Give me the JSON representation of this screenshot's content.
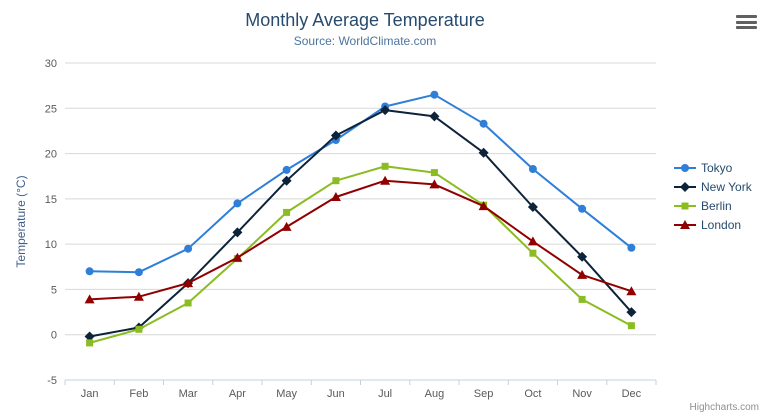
{
  "credits": "Highcharts.com",
  "icons": {
    "export_menu": "hamburger-icon"
  },
  "colors": {
    "title": "#274b6d",
    "subtitle": "#4d759e",
    "gridline": "#d8d8d8",
    "axis_line": "#c0d0e0",
    "tick_label": "#5a5a5a",
    "legend_text": "#274b6d"
  },
  "chart_data": {
    "type": "line",
    "title": "Monthly Average Temperature",
    "subtitle": "Source: WorldClimate.com",
    "xlabel": "",
    "ylabel": "Temperature (°C)",
    "ylim": [
      -5,
      30
    ],
    "ytick_step": 5,
    "grid": true,
    "legend_position": "right",
    "categories": [
      "Jan",
      "Feb",
      "Mar",
      "Apr",
      "May",
      "Jun",
      "Jul",
      "Aug",
      "Sep",
      "Oct",
      "Nov",
      "Dec"
    ],
    "series": [
      {
        "name": "Tokyo",
        "color": "#2f7ed8",
        "marker": "circle",
        "values": [
          7.0,
          6.9,
          9.5,
          14.5,
          18.2,
          21.5,
          25.2,
          26.5,
          23.3,
          18.3,
          13.9,
          9.6
        ]
      },
      {
        "name": "New York",
        "color": "#0d233a",
        "marker": "diamond",
        "values": [
          -0.2,
          0.8,
          5.7,
          11.3,
          17.0,
          22.0,
          24.8,
          24.1,
          20.1,
          14.1,
          8.6,
          2.5
        ]
      },
      {
        "name": "Berlin",
        "color": "#8bbc21",
        "marker": "square",
        "values": [
          -0.9,
          0.6,
          3.5,
          8.4,
          13.5,
          17.0,
          18.6,
          17.9,
          14.3,
          9.0,
          3.9,
          1.0
        ]
      },
      {
        "name": "London",
        "color": "#910000",
        "marker": "triangle",
        "values": [
          3.9,
          4.2,
          5.7,
          8.5,
          11.9,
          15.2,
          17.0,
          16.6,
          14.2,
          10.3,
          6.6,
          4.8
        ]
      }
    ]
  }
}
